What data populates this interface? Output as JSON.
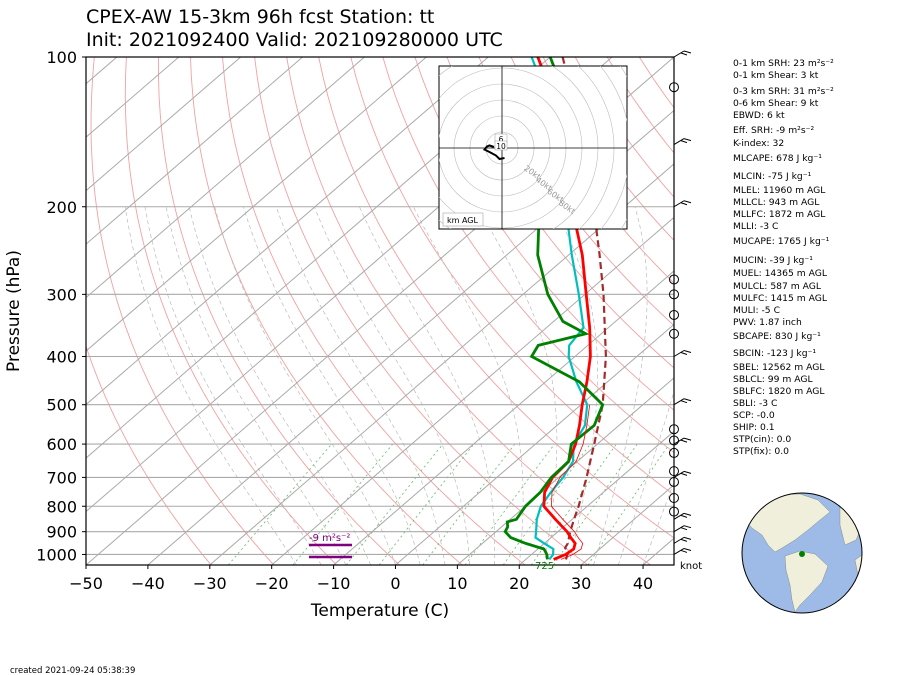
{
  "title_line1": "CPEX-AW 15-3km  96h fcst  Station: tt",
  "title_line2": "Init: 2021092400  Valid: 202109280000 UTC",
  "xlabel": "Temperature (C)",
  "ylabel": "Pressure (hPa)",
  "created": "created 2021-09-24 05:38:39",
  "knot_label": "knot",
  "hodograph_unit_label": "km AGL",
  "hodograph_ring_labels": [
    "20kt",
    "40kt",
    "60kt",
    "80kt"
  ],
  "hodograph_height_labels": [
    "6",
    "10"
  ],
  "srh_label": "-9 m²s⁻²",
  "lcl_label": "725",
  "indices": [
    "0-1 km SRH: 23 m²s⁻²",
    "0-1 km Shear: 3 kt",
    "0-3 km SRH: 31 m²s⁻²",
    "0-6 km Shear: 9 kt",
    "EBWD: 6 kt",
    "Eff. SRH: -9 m²s⁻²",
    "K-index: 32",
    "MLCAPE: 678 J kg⁻¹",
    "MLCIN: -75 J kg⁻¹",
    "MLEL: 11960 m AGL",
    "MLLCL: 943 m AGL",
    "MLLFC: 1872 m AGL",
    "MLLI: -3 C",
    "MUCAPE: 1765 J kg⁻¹",
    "MUCIN: -39 J kg⁻¹",
    "MUEL: 14365 m AGL",
    "MULCL: 587 m AGL",
    "MULFC: 1415 m AGL",
    "MULI: -5 C",
    "PWV: 1.87 inch",
    "SBCAPE: 830 J kg⁻¹",
    "SBCIN: -123 J kg⁻¹",
    "SBEL: 12562 m AGL",
    "SBLCL: 99 m AGL",
    "SBLFC: 1820 m AGL",
    "SBLI: -3 C",
    "SCP: -0.0",
    "SHIP: 0.1",
    "STP(cin): 0.0",
    "STP(fix): 0.0"
  ],
  "colors": {
    "temperature": "#ff0000",
    "dewpoint": "#008000",
    "wetbulb": "#00bfbf",
    "parcel": "#a52a2a",
    "isotherm": "#aaaaaa",
    "dry_adiabat": "#f4a0a0",
    "moist_adiabat": "#bbbbbb",
    "mixing_ratio": "#66bb66",
    "srh_bar": "#800080",
    "globe_ocean": "#9dbbe6",
    "globe_land": "#f0efdc",
    "station": "#008000"
  },
  "chart_data": {
    "type": "line",
    "subtype": "skew-T log-p",
    "xlim": [
      -50,
      45
    ],
    "ylim": [
      1050,
      100
    ],
    "y_scale": "log",
    "x_ticks": [
      -50,
      -40,
      -30,
      -20,
      -10,
      0,
      10,
      20,
      30,
      40
    ],
    "y_ticks": [
      100,
      200,
      300,
      400,
      500,
      600,
      700,
      800,
      900,
      1000
    ],
    "grid": true,
    "series": [
      {
        "key": "temperature",
        "pressure": [
          1023,
          1000,
          975,
          950,
          925,
          900,
          850,
          800,
          750,
          700,
          650,
          600,
          550,
          500,
          450,
          400,
          350,
          300,
          250,
          200,
          170,
          150,
          125,
          100
        ],
        "values": [
          24.5,
          25.5,
          25.8,
          25.0,
          23.2,
          21.5,
          17.3,
          13.0,
          10.5,
          9.0,
          8.6,
          6.5,
          3.6,
          0.2,
          -3.3,
          -7.5,
          -13.0,
          -19.8,
          -27.8,
          -38.5,
          -45.5,
          -51.0,
          -60.0,
          -72.0
        ]
      },
      {
        "key": "dewpoint",
        "pressure": [
          1023,
          1000,
          975,
          950,
          925,
          900,
          880,
          860,
          850,
          800,
          750,
          700,
          650,
          600,
          550,
          500,
          450,
          400,
          380,
          360,
          340,
          300,
          250,
          220,
          200,
          180,
          170,
          150,
          125,
          100
        ],
        "values": [
          23.5,
          22.5,
          21.0,
          17.0,
          13.5,
          11.5,
          11.0,
          10.0,
          11.0,
          10.0,
          9.8,
          8.8,
          8.6,
          5.8,
          6.0,
          3.5,
          -4.5,
          -17.0,
          -18.0,
          -12.5,
          -18.5,
          -26.0,
          -35.0,
          -40.0,
          -47.0,
          -42.5,
          -42.5,
          -50.0,
          -58.0,
          -70.0
        ]
      },
      {
        "key": "wetbulb",
        "pressure": [
          1023,
          1000,
          975,
          950,
          925,
          900,
          850,
          800,
          750,
          700,
          650,
          600,
          550,
          500,
          450,
          400,
          380,
          350,
          300,
          250,
          200,
          170,
          150,
          125,
          100
        ],
        "values": [
          23.8,
          23.5,
          22.5,
          20.0,
          17.5,
          16.5,
          14.3,
          12.5,
          11.5,
          10.7,
          9.3,
          6.2,
          4.5,
          1.0,
          -5.0,
          -11.0,
          -13.0,
          -14.0,
          -21.0,
          -29.5,
          -39.5,
          -46.0,
          -52.0,
          -61.0,
          -73.0
        ]
      },
      {
        "key": "parcel",
        "pressure": [
          1023,
          990,
          970,
          950,
          900,
          850,
          800,
          700,
          600,
          500,
          400,
          300,
          250,
          200,
          150,
          100
        ],
        "values": [
          26.5,
          25.5,
          24.2,
          23.8,
          22.0,
          20.3,
          18.6,
          14.5,
          9.5,
          3.5,
          -5.0,
          -17.0,
          -25.0,
          -35.0,
          -48.0,
          -68.0
        ]
      }
    ],
    "wind_barb_pressures": [
      100,
      150,
      200,
      400,
      500,
      600,
      700,
      850,
      900,
      950,
      1000
    ],
    "calm_wind_pressures": [
      115,
      280,
      300,
      330,
      360,
      560,
      590,
      625,
      680,
      715,
      770,
      820
    ],
    "hodograph": {
      "u": [
        -1.6,
        -2.5,
        -3.0,
        -3.5,
        -2.5,
        -1.2,
        -0.5,
        0.5
      ],
      "v": [
        0.2,
        0.5,
        0.3,
        -0.3,
        -0.8,
        -1.5,
        -2.2,
        -2.0
      ]
    },
    "globe_station": {
      "lat": 10.5,
      "lon": -61.3
    }
  }
}
